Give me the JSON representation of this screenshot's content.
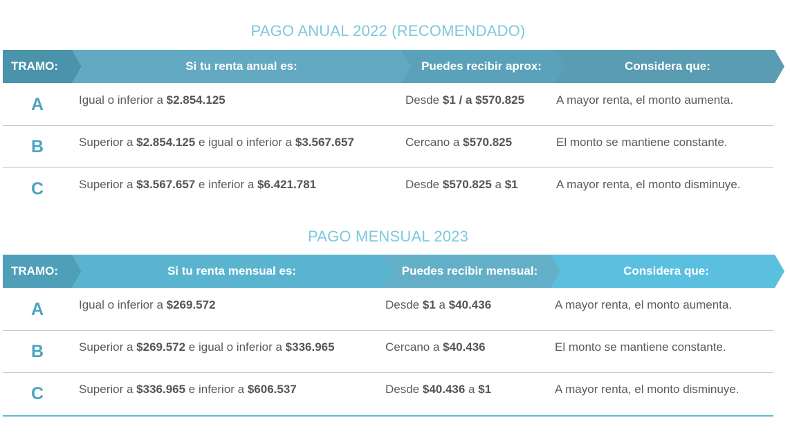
{
  "tables": [
    {
      "title": "PAGO ANUAL 2022 (RECOMENDADO)",
      "headers": [
        "TRAMO:",
        "Si tu renta anual es:",
        "Puedes recibir aprox:",
        "Considera que:"
      ],
      "rows": [
        {
          "tramo": "A",
          "renta": [
            {
              "t": "Igual o inferior a "
            },
            {
              "b": "$2.854.125"
            }
          ],
          "recibir": [
            {
              "t": "Desde "
            },
            {
              "b": "$1 / a $570.825"
            }
          ],
          "considera": "A mayor renta, el monto aumenta."
        },
        {
          "tramo": "B",
          "renta": [
            {
              "t": "Superior a "
            },
            {
              "b": "$2.854.125"
            },
            {
              "t": " e igual o inferior a "
            },
            {
              "b": "$3.567.657"
            }
          ],
          "recibir": [
            {
              "t": "Cercano a "
            },
            {
              "b": "$570.825"
            }
          ],
          "considera": "El monto se mantiene constante."
        },
        {
          "tramo": "C",
          "renta": [
            {
              "t": "Superior a "
            },
            {
              "b": "$3.567.657"
            },
            {
              "t": " e inferior a "
            },
            {
              "b": "$6.421.781"
            }
          ],
          "recibir": [
            {
              "t": "Desde "
            },
            {
              "b": "$570.825"
            },
            {
              "t": " a "
            },
            {
              "b": "$1"
            }
          ],
          "considera": "A mayor renta, el monto disminuye."
        }
      ],
      "colors": [
        "#4a93ab",
        "#62a9c1",
        "#5aa2b9",
        "#5a9cb2"
      ]
    },
    {
      "title": "PAGO MENSUAL 2023",
      "headers": [
        "TRAMO:",
        "Si tu renta mensual es:",
        "Puedes recibir mensual:",
        "Considera que:"
      ],
      "rows": [
        {
          "tramo": "A",
          "renta": [
            {
              "t": "Igual o inferior a "
            },
            {
              "b": "$269.572"
            }
          ],
          "recibir": [
            {
              "t": "Desde "
            },
            {
              "b": "$1"
            },
            {
              "t": " a "
            },
            {
              "b": "$40.436"
            }
          ],
          "considera": "A mayor renta, el monto aumenta."
        },
        {
          "tramo": "B",
          "renta": [
            {
              "t": "Superior a "
            },
            {
              "b": "$269.572"
            },
            {
              "t": " e igual o inferior a "
            },
            {
              "b": "$336.965"
            }
          ],
          "recibir": [
            {
              "t": "Cercano a "
            },
            {
              "b": "$40.436"
            }
          ],
          "considera": "El monto se mantiene constante."
        },
        {
          "tramo": "C",
          "renta": [
            {
              "t": "Superior a "
            },
            {
              "b": "$336.965"
            },
            {
              "t": " e inferior a "
            },
            {
              "b": "$606.537"
            }
          ],
          "recibir": [
            {
              "t": "Desde "
            },
            {
              "b": "$40.436"
            },
            {
              "t": " a "
            },
            {
              "b": "$1"
            }
          ],
          "considera": "A mayor renta, el monto disminuye."
        }
      ],
      "colors": [
        "#4f9fb9",
        "#5ab3cf",
        "#64afc8",
        "#5bbfdf"
      ]
    }
  ]
}
